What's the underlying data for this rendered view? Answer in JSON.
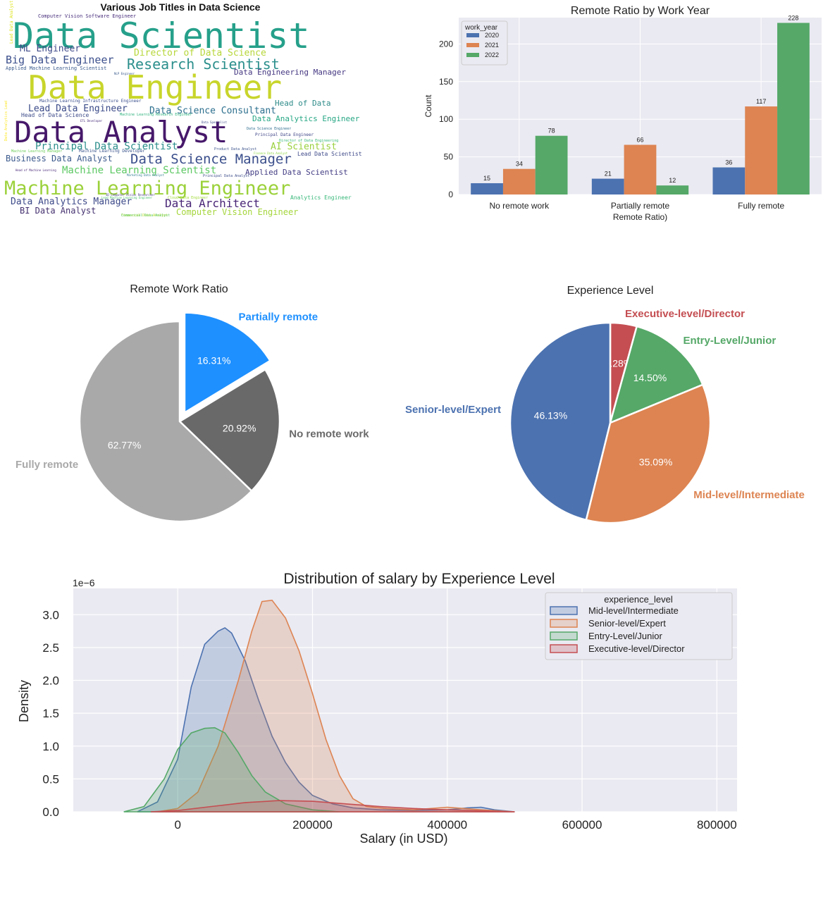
{
  "wordcloud": {
    "title": "Various Job Titles in Data Science",
    "words": [
      {
        "text": "Data Scientist",
        "color": "#26a08a"
      },
      {
        "text": "Data Engineer",
        "color": "#c8d52b"
      },
      {
        "text": "Data Analyst",
        "color": "#46186a"
      },
      {
        "text": "Machine Learning Engineer",
        "color": "#9bd13a"
      },
      {
        "text": "Research Scientist",
        "color": "#2b8f8c"
      },
      {
        "text": "Data Science Manager",
        "color": "#3a4e8b"
      },
      {
        "text": "Big Data Engineer",
        "color": "#3b4f8c"
      },
      {
        "text": "ML Engineer",
        "color": "#3f4a89"
      },
      {
        "text": "Director of Data Science",
        "color": "#b7d73a"
      },
      {
        "text": "Lead Data Engineer",
        "color": "#3a4a88"
      },
      {
        "text": "Data Science Consultant",
        "color": "#2c6f8e"
      },
      {
        "text": "Principal Data Scientist",
        "color": "#2b8e8b"
      },
      {
        "text": "Business Data Analyst",
        "color": "#3b5a8d"
      },
      {
        "text": "Data Analytics Manager",
        "color": "#3d4a89"
      },
      {
        "text": "Data Architect",
        "color": "#482576"
      },
      {
        "text": "BI Data Analyst",
        "color": "#44306f"
      },
      {
        "text": "Computer Vision Engineer",
        "color": "#a5d63c"
      },
      {
        "text": "Machine Learning Scientist",
        "color": "#5cc863"
      },
      {
        "text": "Applied Data Scientist",
        "color": "#433d84"
      },
      {
        "text": "AI Scientist",
        "color": "#9ad03c"
      },
      {
        "text": "Head of Data",
        "color": "#2f8c8a"
      },
      {
        "text": "Data Engineering Manager",
        "color": "#453781"
      },
      {
        "text": "Data Analytics Engineer",
        "color": "#27a784"
      },
      {
        "text": "Lead Data Scientist",
        "color": "#3f4a89"
      },
      {
        "text": "Analytics Engineer",
        "color": "#38b87a"
      },
      {
        "text": "Computer Vision Software Engineer",
        "color": "#472d7b"
      },
      {
        "text": "Machine Learning Infrastructure Engineer",
        "color": "#3b4f8c"
      },
      {
        "text": "Head of Data Science",
        "color": "#3d4b89"
      },
      {
        "text": "Applied Machine Learning Scientist",
        "color": "#38598c"
      },
      {
        "text": "Principal Data Engineer",
        "color": "#404688"
      },
      {
        "text": "Machine Learning Developer",
        "color": "#3a548c"
      },
      {
        "text": "Data Science Engineer",
        "color": "#2e6d8e"
      },
      {
        "text": "Cloud Data Engineer",
        "color": "#a0da39"
      },
      {
        "text": "Principal Data Analyst",
        "color": "#3d4d8a"
      },
      {
        "text": "Director of Data Engineering",
        "color": "#36b677"
      },
      {
        "text": "Product Data Analyst",
        "color": "#3b528b"
      },
      {
        "text": "Financial Data Analyst",
        "color": "#b8de29"
      },
      {
        "text": "Machine Learning Manager",
        "color": "#6ccd5a"
      },
      {
        "text": "Head of Machine Learning",
        "color": "#482878"
      },
      {
        "text": "Marketing Data Analyst",
        "color": "#2a788e"
      },
      {
        "text": "Lead Machine Learning Engineer",
        "color": "#4ac16d"
      },
      {
        "text": "Finance Data Analyst",
        "color": "#8fd744"
      },
      {
        "text": "NLP Engineer",
        "color": "#38598c"
      },
      {
        "text": "Data Specialist",
        "color": "#3e4a89"
      },
      {
        "text": "ETL Developer",
        "color": "#472c7a"
      },
      {
        "text": "Machine Learning Research Engineer",
        "color": "#2db27d"
      },
      {
        "text": "Commercial Data Analyst",
        "color": "#5ec962"
      },
      {
        "text": "Data Analytics Lead",
        "color": "#fde725"
      },
      {
        "text": "Lead Data Analyst",
        "color": "#dde318"
      },
      {
        "text": "3D Computer Vision Researcher",
        "color": "#453882"
      }
    ]
  },
  "bar": {
    "title": "Remote Ratio by Work Year",
    "xlabel": "Remote Ratio)",
    "ylabel": "Count",
    "legend_title": "work_year",
    "colors": [
      "#4c72b0",
      "#dd8452",
      "#55a868"
    ],
    "yticks": [
      "0",
      "50",
      "100",
      "150",
      "200"
    ],
    "chart_data": {
      "type": "bar",
      "categories": [
        "No remote work",
        "Partially remote",
        "Fully remote"
      ],
      "series": [
        {
          "name": "2020",
          "values": [
            15,
            21,
            36
          ]
        },
        {
          "name": "2021",
          "values": [
            34,
            66,
            117
          ]
        },
        {
          "name": "2022",
          "values": [
            78,
            12,
            228
          ]
        }
      ],
      "ylim": [
        0,
        235
      ],
      "grid": true,
      "legend": "top-left"
    }
  },
  "pie1": {
    "title": "Remote Work Ratio",
    "chart_data": {
      "type": "pie",
      "labels": [
        "Partially remote",
        "No remote work",
        "Fully remote"
      ],
      "values": [
        16.31,
        20.92,
        62.77
      ],
      "pct_labels": [
        "16.31%",
        "20.92%",
        "62.77%"
      ],
      "colors": [
        "#1e90ff",
        "#696969",
        "#a9a9a9"
      ],
      "explode": [
        0.1,
        0,
        0
      ],
      "start_angle_deg": 90
    }
  },
  "pie2": {
    "title": "Experience Level",
    "chart_data": {
      "type": "pie",
      "labels": [
        "Executive-level/Director",
        "Entry-Level/Junior",
        "Mid-level/Intermediate",
        "Senior-level/Expert"
      ],
      "values": [
        4.28,
        14.5,
        35.09,
        46.13
      ],
      "pct_labels": [
        "4.28%",
        "14.50%",
        "35.09%",
        "46.13%"
      ],
      "colors": [
        "#c44e52",
        "#55a868",
        "#dd8452",
        "#4c72b0"
      ],
      "start_angle_deg": 90
    }
  },
  "kde": {
    "title": "Distribution of salary by Experience Level",
    "xlabel": "Salary (in USD)",
    "ylabel": "Density",
    "offset_text": "1e−6",
    "legend_title": "experience_level",
    "xticks": [
      "0",
      "200000",
      "400000",
      "600000",
      "800000"
    ],
    "yticks": [
      "0.0",
      "0.5",
      "1.0",
      "1.5",
      "2.0",
      "2.5",
      "3.0"
    ],
    "chart_data": {
      "type": "area",
      "x_units": "USD",
      "y_scale": "1e-6",
      "xlim": [
        -155000,
        830000
      ],
      "ylim": [
        0,
        3.4
      ],
      "grid": true,
      "legend": "top-right",
      "series": [
        {
          "name": "Mid-level/Intermediate",
          "color": "#4c72b0",
          "x": [
            -60000,
            -30000,
            0,
            20000,
            40000,
            60000,
            70000,
            80000,
            100000,
            120000,
            140000,
            160000,
            180000,
            200000,
            230000,
            260000,
            300000,
            350000,
            400000,
            430000,
            450000,
            470000,
            500000
          ],
          "y": [
            0,
            0.15,
            0.8,
            1.9,
            2.55,
            2.75,
            2.8,
            2.72,
            2.3,
            1.7,
            1.15,
            0.75,
            0.45,
            0.25,
            0.12,
            0.06,
            0.03,
            0.02,
            0.03,
            0.06,
            0.07,
            0.03,
            0
          ]
        },
        {
          "name": "Senior-level/Expert",
          "color": "#dd8452",
          "x": [
            -30000,
            0,
            30000,
            60000,
            90000,
            110000,
            125000,
            140000,
            160000,
            180000,
            200000,
            220000,
            240000,
            260000,
            280000,
            310000,
            350000,
            400000,
            450000,
            500000
          ],
          "y": [
            0,
            0.05,
            0.3,
            1.0,
            2.0,
            2.75,
            3.2,
            3.22,
            2.95,
            2.45,
            1.8,
            1.1,
            0.55,
            0.2,
            0.08,
            0.05,
            0.03,
            0.07,
            0.03,
            0
          ]
        },
        {
          "name": "Entry-Level/Junior",
          "color": "#55a868",
          "x": [
            -80000,
            -50000,
            -20000,
            0,
            20000,
            40000,
            55000,
            70000,
            90000,
            110000,
            130000,
            160000,
            200000,
            240000
          ],
          "y": [
            0,
            0.08,
            0.5,
            0.95,
            1.2,
            1.27,
            1.28,
            1.2,
            0.9,
            0.55,
            0.3,
            0.12,
            0.03,
            0
          ]
        },
        {
          "name": "Executive-level/Director",
          "color": "#c44e52",
          "x": [
            -40000,
            0,
            50000,
            100000,
            150000,
            200000,
            250000,
            300000,
            350000,
            400000,
            450000,
            500000
          ],
          "y": [
            0,
            0.02,
            0.08,
            0.14,
            0.17,
            0.16,
            0.12,
            0.08,
            0.05,
            0.03,
            0.015,
            0
          ]
        }
      ]
    }
  }
}
